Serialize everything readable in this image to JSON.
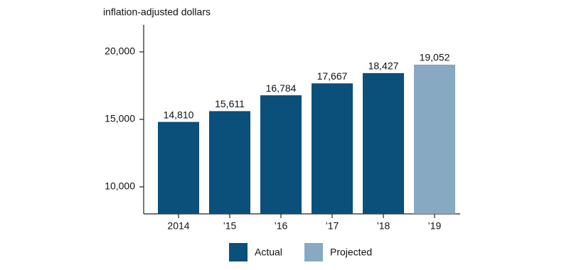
{
  "chart_data": {
    "type": "bar",
    "y_axis_label": "inflation-adjusted dollars",
    "categories": [
      "2014",
      "’15",
      "’16",
      "’17",
      "’18",
      "’19"
    ],
    "series": [
      {
        "name": "Actual",
        "color": "#0b4f7b",
        "values": [
          14810,
          15611,
          16784,
          17667,
          18427,
          null
        ],
        "value_labels": [
          "14,810",
          "15,611",
          "16,784",
          "17,667",
          "18,427",
          null
        ]
      },
      {
        "name": "Projected",
        "color": "#87a9c1",
        "values": [
          null,
          null,
          null,
          null,
          null,
          19052
        ],
        "value_labels": [
          null,
          null,
          null,
          null,
          null,
          "19,052"
        ]
      }
    ],
    "ylim": [
      8000,
      22000
    ],
    "yticks": [
      {
        "value": 10000,
        "label": "10,000"
      },
      {
        "value": 15000,
        "label": "15,000"
      },
      {
        "value": 20000,
        "label": "20,000"
      }
    ],
    "grid": false,
    "legend": "bottom"
  }
}
